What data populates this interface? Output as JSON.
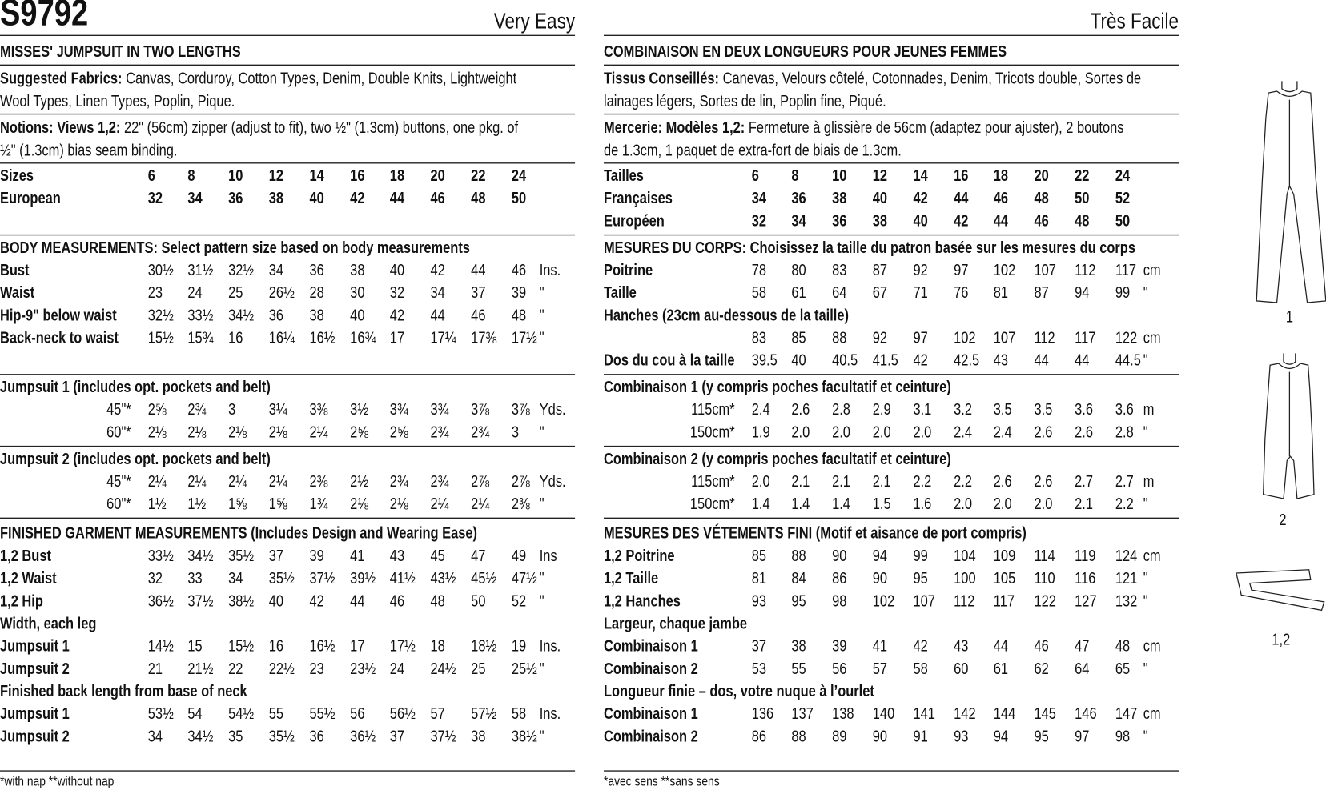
{
  "header": {
    "code": "S9792"
  },
  "columns": [
    {
      "difficulty": "Very Easy",
      "title": "MISSES' JUMPSUIT IN TWO LENGTHS",
      "fabrics": {
        "label": "Suggested Fabrics:",
        "lines": [
          " Canvas, Corduroy, Cotton Types, Denim, Double Knits, Lightweight",
          "Wool Types, Linen Types, Poplin, Pique."
        ]
      },
      "notions": {
        "label": "Notions: Views 1,2:",
        "lines": [
          " 22\" (56cm) zipper (adjust to fit), two ½\" (1.3cm) buttons, one pkg. of",
          "½\" (1.3cm) bias seam binding."
        ]
      },
      "blocks": [
        {
          "rows": [
            {
              "label": "Sizes",
              "values": [
                "6",
                "8",
                "10",
                "12",
                "14",
                "16",
                "18",
                "20",
                "22",
                "24"
              ]
            },
            {
              "label": "European",
              "values": [
                "32",
                "34",
                "36",
                "38",
                "40",
                "42",
                "44",
                "46",
                "48",
                "50"
              ]
            }
          ]
        },
        {
          "heading": "BODY MEASUREMENTS: Select pattern size based on body measurements",
          "rows": [
            {
              "label": "Bust",
              "values": [
                "30½",
                "31½",
                "32½",
                "34",
                "36",
                "38",
                "40",
                "42",
                "44",
                "46"
              ],
              "unit": "Ins."
            },
            {
              "label": "Waist",
              "values": [
                "23",
                "24",
                "25",
                "26½",
                "28",
                "30",
                "32",
                "34",
                "37",
                "39"
              ],
              "unit": "\""
            },
            {
              "label": "Hip-9\" below waist",
              "values": [
                "32½",
                "33½",
                "34½",
                "36",
                "38",
                "40",
                "42",
                "44",
                "46",
                "48"
              ],
              "unit": "\""
            },
            {
              "label": "Back-neck to waist",
              "values": [
                "15½",
                "15¾",
                "16",
                "16¼",
                "16½",
                "16¾",
                "17",
                "17¼",
                "17⅜",
                "17½"
              ],
              "unit": "\""
            }
          ]
        },
        {
          "heading": "Jumpsuit 1 (includes opt. pockets and belt)",
          "rows": [
            {
              "label": "45\"*",
              "values": [
                "2⅝",
                "2¾",
                "3",
                "3¼",
                "3⅜",
                "3½",
                "3¾",
                "3¾",
                "3⅞",
                "3⅞"
              ],
              "unit": "Yds."
            },
            {
              "label": "60\"*",
              "values": [
                "2⅛",
                "2⅛",
                "2⅛",
                "2⅛",
                "2¼",
                "2⅝",
                "2⅝",
                "2¾",
                "2¾",
                "3"
              ],
              "unit": "\""
            }
          ]
        },
        {
          "heading": "Jumpsuit 2 (includes opt. pockets and belt)",
          "rows": [
            {
              "label": "45\"*",
              "values": [
                "2¼",
                "2¼",
                "2¼",
                "2¼",
                "2⅜",
                "2½",
                "2¾",
                "2¾",
                "2⅞",
                "2⅞"
              ],
              "unit": "Yds."
            },
            {
              "label": "60\"*",
              "values": [
                "1½",
                "1½",
                "1⅝",
                "1⅝",
                "1¾",
                "2⅛",
                "2⅛",
                "2¼",
                "2¼",
                "2⅜"
              ],
              "unit": "\""
            }
          ]
        },
        {
          "heading": "FINISHED GARMENT MEASUREMENTS (Includes Design and Wearing Ease)",
          "rows": [
            {
              "label": "1,2 Bust",
              "values": [
                "33½",
                "34½",
                "35½",
                "37",
                "39",
                "41",
                "43",
                "45",
                "47",
                "49"
              ],
              "unit": "Ins"
            },
            {
              "label": "1,2 Waist",
              "values": [
                "32",
                "33",
                "34",
                "35½",
                "37½",
                "39½",
                "41½",
                "43½",
                "45½",
                "47½"
              ],
              "unit": "\""
            },
            {
              "label": "1,2 Hip",
              "values": [
                "36½",
                "37½",
                "38½",
                "40",
                "42",
                "44",
                "46",
                "48",
                "50",
                "52"
              ],
              "unit": "\""
            },
            {
              "label": "Width, each leg"
            },
            {
              "label": "Jumpsuit 1",
              "values": [
                "14½",
                "15",
                "15½",
                "16",
                "16½",
                "17",
                "17½",
                "18",
                "18½",
                "19"
              ],
              "unit": "Ins."
            },
            {
              "label": "Jumpsuit 2",
              "values": [
                "21",
                "21½",
                "22",
                "22½",
                "23",
                "23½",
                "24",
                "24½",
                "25",
                "25½"
              ],
              "unit": "\""
            },
            {
              "label": "Finished back length from base of neck"
            },
            {
              "label": "Jumpsuit 1",
              "values": [
                "53½",
                "54",
                "54½",
                "55",
                "55½",
                "56",
                "56½",
                "57",
                "57½",
                "58"
              ],
              "unit": "Ins."
            },
            {
              "label": "Jumpsuit 2",
              "values": [
                "34",
                "34½",
                "35",
                "35½",
                "36",
                "36½",
                "37",
                "37½",
                "38",
                "38½"
              ],
              "unit": "\""
            }
          ]
        }
      ],
      "footnote": "*with nap   **without nap"
    },
    {
      "difficulty": "Très Facile",
      "title": "COMBINAISON EN DEUX LONGUEURS POUR JEUNES FEMMES",
      "fabrics": {
        "label": "Tissus Conseillés:",
        "lines": [
          " Canevas, Velours côtelé, Cotonnades, Denim, Tricots double, Sortes de",
          "lainages légers, Sortes de lin, Poplin fine, Piqué."
        ]
      },
      "notions": {
        "label": "Mercerie: Modèles 1,2:",
        "lines": [
          " Fermeture à glissière de 56cm (adaptez pour ajuster), 2 boutons",
          "de 1.3cm, 1 paquet de extra-fort de biais de 1.3cm."
        ]
      },
      "blocks": [
        {
          "rows": [
            {
              "label": "Tailles",
              "values": [
                "6",
                "8",
                "10",
                "12",
                "14",
                "16",
                "18",
                "20",
                "22",
                "24"
              ]
            },
            {
              "label": "Françaises",
              "values": [
                "34",
                "36",
                "38",
                "40",
                "42",
                "44",
                "46",
                "48",
                "50",
                "52"
              ]
            },
            {
              "label": "Européen",
              "values": [
                "32",
                "34",
                "36",
                "38",
                "40",
                "42",
                "44",
                "46",
                "48",
                "50"
              ]
            }
          ]
        },
        {
          "heading": "MESURES DU CORPS: Choisissez la taille du patron basée sur les mesures du corps",
          "rows": [
            {
              "label": "Poitrine",
              "values": [
                "78",
                "80",
                "83",
                "87",
                "92",
                "97",
                "102",
                "107",
                "112",
                "117"
              ],
              "unit": "cm"
            },
            {
              "label": "Taille",
              "values": [
                "58",
                "61",
                "64",
                "67",
                "71",
                "76",
                "81",
                "87",
                "94",
                "99"
              ],
              "unit": "\""
            },
            {
              "label": "Hanches (23cm au-dessous de la taille)"
            },
            {
              "values": [
                "83",
                "85",
                "88",
                "92",
                "97",
                "102",
                "107",
                "112",
                "117",
                "122"
              ],
              "unit": "cm"
            },
            {
              "label": "Dos du cou à la taille",
              "values": [
                "39.5",
                "40",
                "40.5",
                "41.5",
                "42",
                "42.5",
                "43",
                "44",
                "44",
                "44.5"
              ],
              "unit": "\""
            }
          ]
        },
        {
          "heading": "Combinaison 1 (y compris poches facultatif et ceinture)",
          "rows": [
            {
              "label": "115cm*",
              "values": [
                "2.4",
                "2.6",
                "2.8",
                "2.9",
                "3.1",
                "3.2",
                "3.5",
                "3.5",
                "3.6",
                "3.6"
              ],
              "unit": "m"
            },
            {
              "label": "150cm*",
              "values": [
                "1.9",
                "2.0",
                "2.0",
                "2.0",
                "2.0",
                "2.4",
                "2.4",
                "2.6",
                "2.6",
                "2.8"
              ],
              "unit": "\""
            }
          ]
        },
        {
          "heading": "Combinaison 2 (y compris poches facultatif et ceinture)",
          "rows": [
            {
              "label": "115cm*",
              "values": [
                "2.0",
                "2.1",
                "2.1",
                "2.1",
                "2.2",
                "2.2",
                "2.6",
                "2.6",
                "2.7",
                "2.7"
              ],
              "unit": "m"
            },
            {
              "label": "150cm*",
              "values": [
                "1.4",
                "1.4",
                "1.4",
                "1.5",
                "1.6",
                "2.0",
                "2.0",
                "2.0",
                "2.1",
                "2.2"
              ],
              "unit": "\""
            }
          ]
        },
        {
          "heading": "MESURES DES VÉTEMENTS FINI (Motif et aisance de port compris)",
          "rows": [
            {
              "label": "1,2 Poitrine",
              "values": [
                "85",
                "88",
                "90",
                "94",
                "99",
                "104",
                "109",
                "114",
                "119",
                "124"
              ],
              "unit": "cm"
            },
            {
              "label": "1,2 Taille",
              "values": [
                "81",
                "84",
                "86",
                "90",
                "95",
                "100",
                "105",
                "110",
                "116",
                "121"
              ],
              "unit": "\""
            },
            {
              "label": "1,2 Hanches",
              "values": [
                "93",
                "95",
                "98",
                "102",
                "107",
                "112",
                "117",
                "122",
                "127",
                "132"
              ],
              "unit": "\""
            },
            {
              "label": "Largeur, chaque jambe"
            },
            {
              "label": "Combinaison 1",
              "values": [
                "37",
                "38",
                "39",
                "41",
                "42",
                "43",
                "44",
                "46",
                "47",
                "48"
              ],
              "unit": "cm"
            },
            {
              "label": "Combinaison 2",
              "values": [
                "53",
                "55",
                "56",
                "57",
                "58",
                "60",
                "61",
                "62",
                "64",
                "65"
              ],
              "unit": "\""
            },
            {
              "label": "Longueur finie – dos, votre nuque à l’ourlet"
            },
            {
              "label": "Combinaison 1",
              "values": [
                "136",
                "137",
                "138",
                "140",
                "141",
                "142",
                "144",
                "145",
                "146",
                "147"
              ],
              "unit": "cm"
            },
            {
              "label": "Combinaison 2",
              "values": [
                "86",
                "88",
                "89",
                "90",
                "91",
                "93",
                "94",
                "95",
                "97",
                "98"
              ],
              "unit": "\""
            }
          ]
        }
      ],
      "footnote": "*avec sens   **sans sens"
    }
  ],
  "views": [
    "1",
    "2",
    "1,2"
  ]
}
